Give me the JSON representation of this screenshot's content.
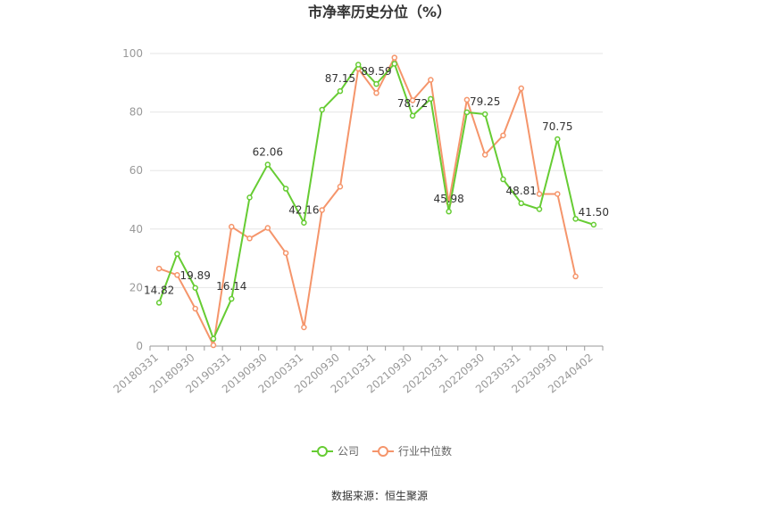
{
  "chart_data": {
    "type": "line",
    "title": "市净率历史分位（%）",
    "xlabel": "",
    "ylabel": "",
    "ylim": [
      0,
      100
    ],
    "yticks": [
      0,
      20,
      40,
      60,
      80,
      100
    ],
    "grid": true,
    "legend_position": "bottom",
    "x": [
      "20180331",
      "20180630",
      "20180930",
      "20181231",
      "20190331",
      "20190630",
      "20190930",
      "20191231",
      "20200331",
      "20200630",
      "20200930",
      "20201231",
      "20210331",
      "20210630",
      "20210930",
      "20211231",
      "20220331",
      "20220630",
      "20220930",
      "20221231",
      "20230331",
      "20230630",
      "20230930",
      "20231231",
      "20240402"
    ],
    "xtick_labels": [
      "20180331",
      "20180930",
      "20190331",
      "20190930",
      "20200331",
      "20200930",
      "20210331",
      "20210930",
      "20220331",
      "20220930",
      "20230331",
      "20230930",
      "20240402"
    ],
    "series": [
      {
        "name": "公司",
        "color": "#66cc33",
        "values": [
          14.82,
          31.5,
          19.89,
          2.5,
          16.14,
          50.8,
          62.06,
          53.8,
          42.16,
          80.8,
          87.15,
          96.2,
          89.59,
          96.5,
          78.72,
          84.5,
          45.98,
          79.9,
          79.25,
          57.0,
          48.81,
          46.8,
          70.75,
          43.5,
          41.5
        ],
        "labels": {
          "0": "14.82",
          "2": "19.89",
          "4": "16.14",
          "6": "62.06",
          "8": "42.16",
          "10": "87.15",
          "12": "89.59",
          "14": "78.72",
          "16": "45.98",
          "18": "79.25",
          "20": "48.81",
          "22": "70.75",
          "24": "41.50"
        }
      },
      {
        "name": "行业中位数",
        "color": "#f5956b",
        "values": [
          26.5,
          24.3,
          12.8,
          0.3,
          40.8,
          36.8,
          40.4,
          31.8,
          6.4,
          46.5,
          54.5,
          94.8,
          86.5,
          98.6,
          84.0,
          91.0,
          49.0,
          84.2,
          65.4,
          72.0,
          88.1,
          52.0,
          52.0,
          23.8,
          null
        ]
      }
    ]
  },
  "source": "数据来源：恒生聚源"
}
